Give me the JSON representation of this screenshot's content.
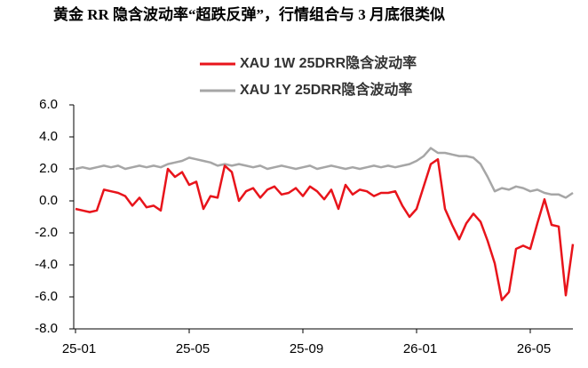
{
  "chart_data": {
    "type": "line",
    "title": "黄金 RR 隐含波动率“超跌反弹”，行情组合与 3 月底很类似",
    "x": [
      0,
      0.25,
      0.5,
      0.75,
      1,
      1.25,
      1.5,
      1.75,
      2,
      2.25,
      2.5,
      2.75,
      3,
      3.25,
      3.5,
      3.75,
      4,
      4.25,
      4.5,
      4.75,
      5,
      5.25,
      5.5,
      5.75,
      6,
      6.25,
      6.5,
      6.75,
      7,
      7.25,
      7.5,
      7.75,
      8,
      8.25,
      8.5,
      8.75,
      9,
      9.25,
      9.5,
      9.75,
      10,
      10.25,
      10.5,
      10.75,
      11,
      11.25,
      11.5,
      11.75,
      12,
      12.25,
      12.5,
      12.75,
      13,
      13.25,
      13.5,
      13.75,
      14,
      14.25,
      14.5,
      14.75,
      15,
      15.25,
      15.5,
      15.75,
      16,
      16.25,
      16.5,
      16.75,
      17,
      17.25,
      17.5
    ],
    "series": [
      {
        "name": "XAU 1W 25DRR隐含波动率",
        "color": "#e8141b",
        "values": [
          -0.5,
          -0.6,
          -0.7,
          -0.6,
          0.7,
          0.6,
          0.5,
          0.3,
          -0.3,
          0.2,
          -0.4,
          -0.3,
          -0.6,
          2.0,
          1.5,
          1.8,
          1.0,
          1.2,
          -0.5,
          0.3,
          0.2,
          2.2,
          1.8,
          0.0,
          0.6,
          0.8,
          0.2,
          0.7,
          0.9,
          0.4,
          0.5,
          0.8,
          0.3,
          0.9,
          0.6,
          0.1,
          0.7,
          -0.5,
          1.0,
          0.4,
          0.7,
          0.6,
          0.3,
          0.5,
          0.5,
          0.6,
          -0.3,
          -1.0,
          -0.5,
          0.9,
          2.3,
          2.6,
          -0.5,
          -1.5,
          -2.4,
          -1.4,
          -0.8,
          -1.3,
          -2.5,
          -3.9,
          -6.2,
          -5.7,
          -3.0,
          -2.8,
          -3.0,
          -1.4,
          0.1,
          -1.5,
          -1.6,
          -5.9,
          -2.7
        ]
      },
      {
        "name": "XAU 1Y 25DRR隐含波动率",
        "color": "#a6a6a6",
        "values": [
          2.0,
          2.1,
          2.0,
          2.1,
          2.2,
          2.1,
          2.2,
          2.0,
          2.1,
          2.2,
          2.1,
          2.2,
          2.1,
          2.3,
          2.4,
          2.5,
          2.7,
          2.6,
          2.5,
          2.4,
          2.2,
          2.3,
          2.2,
          2.3,
          2.2,
          2.1,
          2.2,
          2.0,
          2.1,
          2.2,
          2.1,
          2.0,
          2.1,
          2.2,
          2.0,
          2.1,
          2.2,
          2.1,
          2.0,
          2.1,
          2.0,
          2.1,
          2.2,
          2.1,
          2.2,
          2.1,
          2.2,
          2.3,
          2.5,
          2.8,
          3.3,
          3.0,
          3.0,
          2.9,
          2.8,
          2.8,
          2.7,
          2.3,
          1.5,
          0.6,
          0.8,
          0.7,
          0.9,
          0.8,
          0.6,
          0.7,
          0.5,
          0.4,
          0.4,
          0.2,
          0.5
        ]
      }
    ],
    "xlim": [
      0,
      17.5
    ],
    "xticks": [
      {
        "value": 0,
        "label": "25-01"
      },
      {
        "value": 4,
        "label": "25-05"
      },
      {
        "value": 8,
        "label": "25-09"
      },
      {
        "value": 12,
        "label": "26-01"
      },
      {
        "value": 16,
        "label": "26-05"
      }
    ],
    "ylim": [
      -8,
      6
    ],
    "yticks": [
      {
        "value": 6,
        "label": "6.0"
      },
      {
        "value": 4,
        "label": "4.0"
      },
      {
        "value": 2,
        "label": "2.0"
      },
      {
        "value": 0,
        "label": "0.0"
      },
      {
        "value": -2,
        "label": "-2.0"
      },
      {
        "value": -4,
        "label": "-4.0"
      },
      {
        "value": -6,
        "label": "-6.0"
      },
      {
        "value": -8,
        "label": "-8.0"
      }
    ],
    "grid": false
  }
}
